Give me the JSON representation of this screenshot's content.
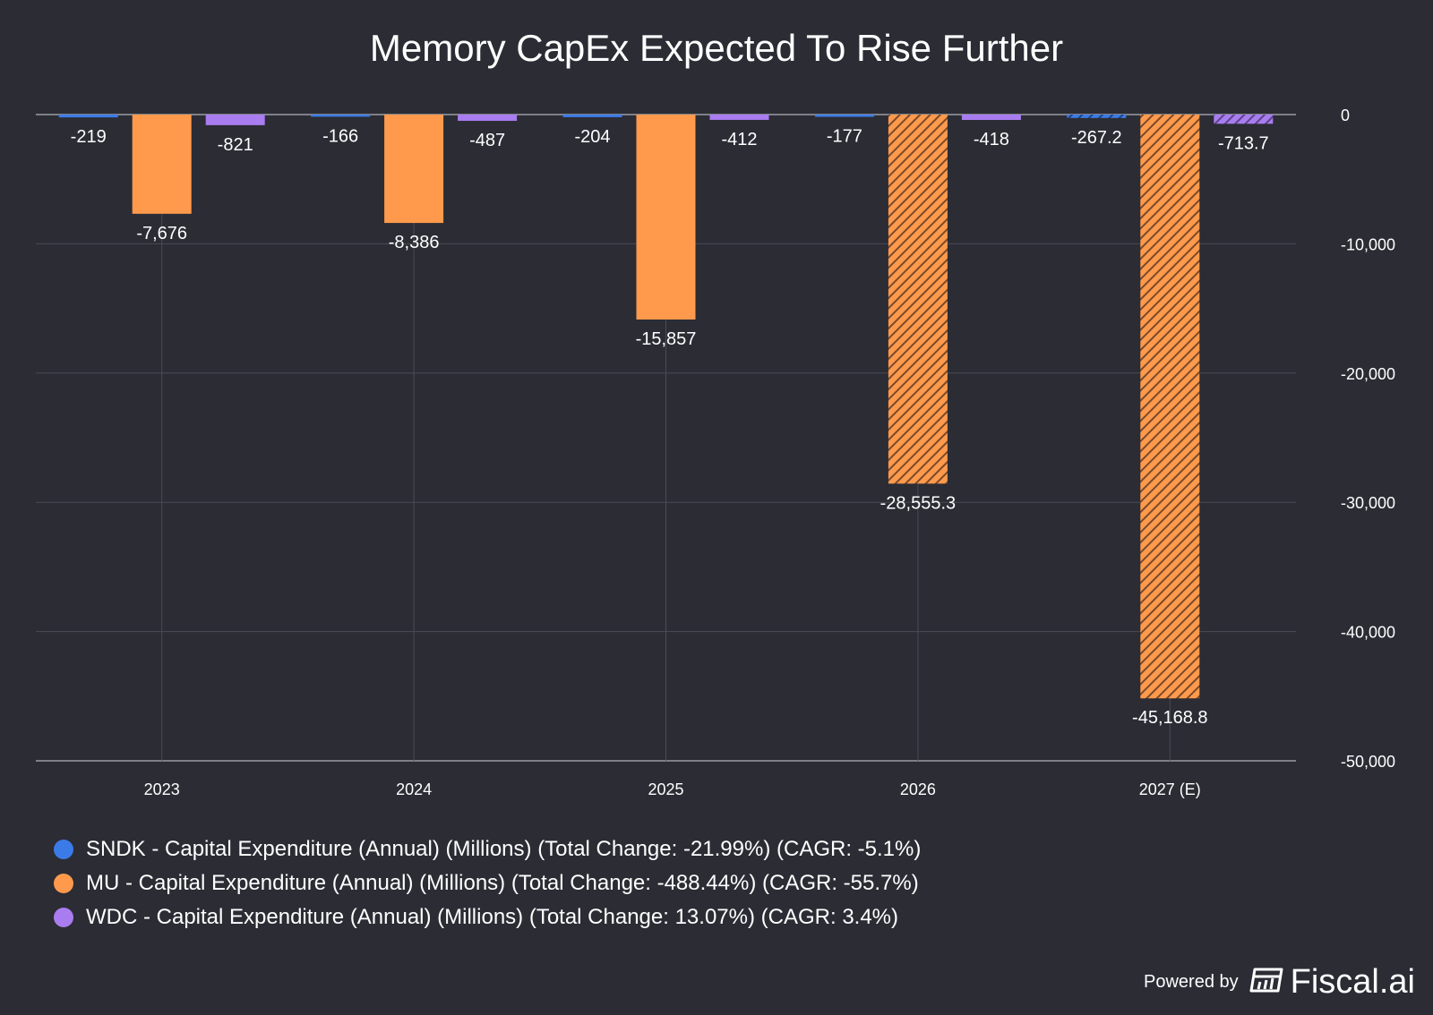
{
  "chart_data": {
    "type": "bar",
    "title": "Memory CapEx Expected To Rise Further",
    "categories": [
      "2023",
      "2024",
      "2025",
      "2026",
      "2027 (E)"
    ],
    "series": [
      {
        "name": "SNDK - Capital Expenditure (Annual) (Millions) (Total Change: -21.99%) (CAGR: -5.1%)",
        "color": "#3b7be8",
        "values": [
          -219,
          -166,
          -204,
          -177,
          -267.2
        ],
        "labels": [
          "-219",
          "-166",
          "-204",
          "-177",
          "-267.2"
        ],
        "estimated": [
          false,
          false,
          false,
          false,
          true
        ]
      },
      {
        "name": "MU - Capital Expenditure (Annual) (Millions) (Total Change: -488.44%) (CAGR: -55.7%)",
        "color": "#ff9a4c",
        "values": [
          -7676,
          -8386,
          -15857,
          -28555.3,
          -45168.8
        ],
        "labels": [
          "-7,676",
          "-8,386",
          "-15,857",
          "-28,555.3",
          "-45,168.8"
        ],
        "estimated": [
          false,
          false,
          false,
          true,
          true
        ]
      },
      {
        "name": "WDC - Capital Expenditure (Annual) (Millions) (Total Change: 13.07%) (CAGR: 3.4%)",
        "color": "#a97cf0",
        "values": [
          -821,
          -487,
          -412,
          -418,
          -713.7
        ],
        "labels": [
          "-821",
          "-487",
          "-412",
          "-418",
          "-713.7"
        ],
        "estimated": [
          false,
          false,
          false,
          false,
          true
        ]
      }
    ],
    "ylim": [
      -50000,
      0
    ],
    "yticks": [
      0,
      -10000,
      -20000,
      -30000,
      -40000,
      -50000
    ],
    "ytick_labels": [
      "0",
      "-10,000",
      "-20,000",
      "-30,000",
      "-40,000",
      "-50,000"
    ],
    "y_axis_side": "right",
    "grid": true,
    "legend_placement": "bottom-left"
  },
  "branding": {
    "powered_by": "Powered by",
    "logo_text": "Fiscal.ai",
    "logo_icon": "fiscal-logo-icon"
  }
}
